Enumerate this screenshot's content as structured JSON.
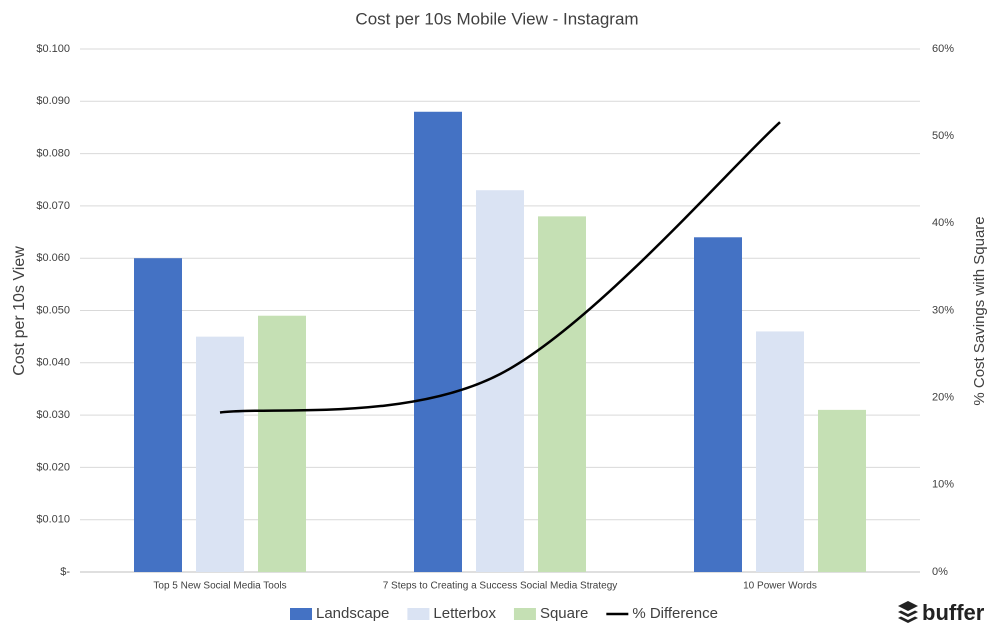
{
  "chart_data": {
    "type": "bar",
    "title": "Cost per 10s Mobile View - Instagram",
    "y_label": "Cost per 10s View",
    "y2_label": "% Cost Savings with Square",
    "categories": [
      "Top 5 New Social Media Tools",
      "7 Steps to Creating a Success Social Media Strategy",
      "10 Power Words"
    ],
    "series": [
      {
        "name": "Landscape",
        "type": "bar",
        "color": "#4472c4",
        "values": [
          0.06,
          0.088,
          0.064
        ]
      },
      {
        "name": "Letterbox",
        "type": "bar",
        "color": "#dae3f3",
        "values": [
          0.045,
          0.073,
          0.046
        ]
      },
      {
        "name": "Square",
        "type": "bar",
        "color": "#c5e0b4",
        "values": [
          0.049,
          0.068,
          0.031
        ]
      },
      {
        "name": "% Difference",
        "type": "line",
        "axis": "y2",
        "color": "#000000",
        "values": [
          18.3,
          22.7,
          51.6
        ]
      }
    ],
    "ylim": [
      0,
      0.1
    ],
    "yticks": [
      {
        "value": 0,
        "label": "$-"
      },
      {
        "value": 0.01,
        "label": "$0.010"
      },
      {
        "value": 0.02,
        "label": "$0.020"
      },
      {
        "value": 0.03,
        "label": "$0.030"
      },
      {
        "value": 0.04,
        "label": "$0.040"
      },
      {
        "value": 0.05,
        "label": "$0.050"
      },
      {
        "value": 0.06,
        "label": "$0.060"
      },
      {
        "value": 0.07,
        "label": "$0.070"
      },
      {
        "value": 0.08,
        "label": "$0.080"
      },
      {
        "value": 0.09,
        "label": "$0.090"
      },
      {
        "value": 0.1,
        "label": "$0.100"
      }
    ],
    "y2lim": [
      0,
      60
    ],
    "y2ticks": [
      {
        "value": 0,
        "label": "0%"
      },
      {
        "value": 10,
        "label": "10%"
      },
      {
        "value": 20,
        "label": "20%"
      },
      {
        "value": 30,
        "label": "30%"
      },
      {
        "value": 40,
        "label": "40%"
      },
      {
        "value": 50,
        "label": "50%"
      },
      {
        "value": 60,
        "label": "60%"
      }
    ],
    "grid": true,
    "legend": "bottom",
    "brand": "buffer"
  }
}
